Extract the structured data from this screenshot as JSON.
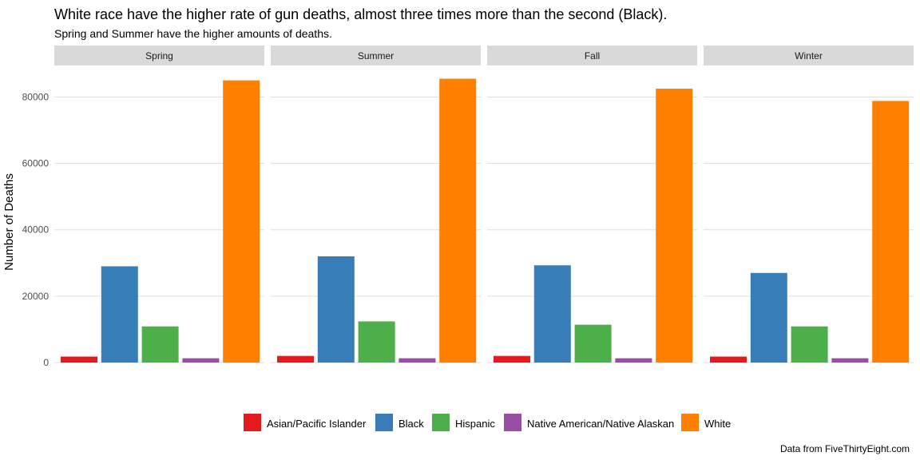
{
  "title": "White race have the higher rate of gun deaths, almost three times more than the second (Black).",
  "subtitle": "Spring and Summer have the higher amounts of deaths.",
  "caption": "Data from FiveThirtyEight.com",
  "colors": {
    "Asian/Pacific Islander": "#E41A1C",
    "Black": "#377EB8",
    "Hispanic": "#4DAF4A",
    "Native American/Native Alaskan": "#984EA3",
    "White": "#FF7F00",
    "strip_background": "#d9d9d9",
    "grid": "#dedede"
  },
  "chart_data": {
    "type": "bar",
    "ylabel": "Number of Deaths",
    "xlabel": "",
    "ylim": [
      0,
      90000
    ],
    "yticks": [
      0,
      20000,
      40000,
      60000,
      80000
    ],
    "ytick_labels": [
      "0",
      "20000",
      "40000",
      "60000",
      "80000"
    ],
    "grid": true,
    "legend_position": "bottom",
    "categories": [
      "Asian/Pacific Islander",
      "Black",
      "Hispanic",
      "Native American/Native Alaskan",
      "White"
    ],
    "facets": [
      {
        "name": "Spring",
        "values": [
          1800,
          29000,
          10900,
          1300,
          85000
        ]
      },
      {
        "name": "Summer",
        "values": [
          2000,
          32000,
          12400,
          1300,
          85500
        ]
      },
      {
        "name": "Fall",
        "values": [
          2000,
          29300,
          11400,
          1300,
          82500
        ]
      },
      {
        "name": "Winter",
        "values": [
          1800,
          27000,
          10900,
          1300,
          78800
        ]
      }
    ]
  }
}
